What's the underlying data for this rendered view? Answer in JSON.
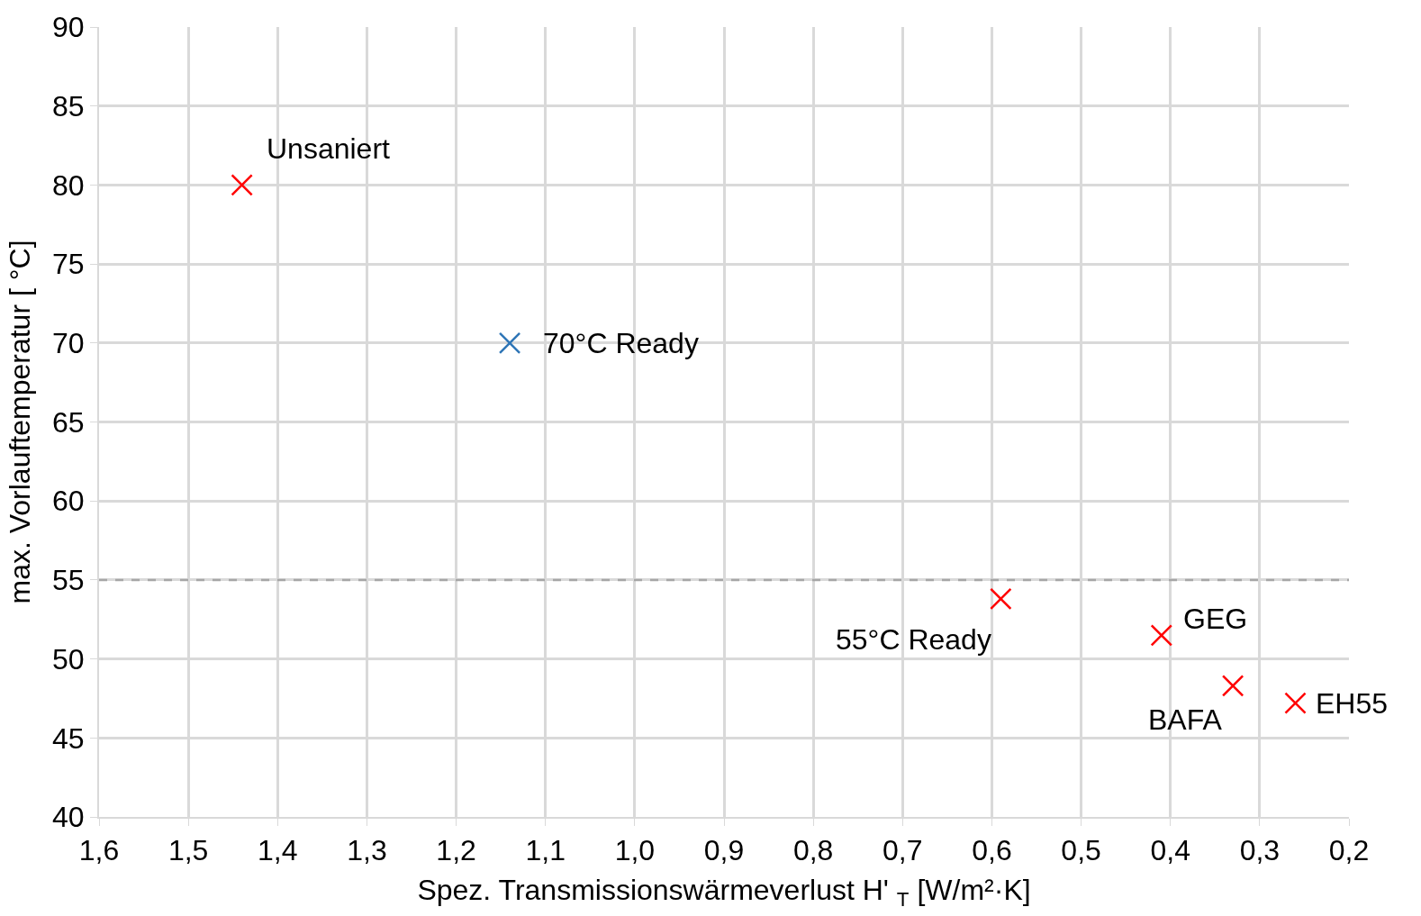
{
  "chart_data": {
    "type": "scatter",
    "xlabel": "Spez. Transmissionswärmeverlust H' $_{T}$ [W/m²·K]",
    "ylabel": "max. Vorlauftemperatur [ °C]",
    "series": [
      {
        "color": "#ff0000",
        "x": [
          1.44,
          0.59,
          0.41,
          0.33,
          0.26
        ],
        "values": [
          80,
          53.8,
          51.5,
          48.3,
          47.2
        ]
      },
      {
        "color": "#2e75b6",
        "x": [
          1.14
        ],
        "values": [
          70
        ]
      }
    ],
    "xlim": [
      1.6,
      0.2
    ],
    "xticks": [
      {
        "value": 1.6,
        "label": "1,6"
      },
      {
        "value": 1.5,
        "label": "1,5"
      },
      {
        "value": 1.4,
        "label": "1,4"
      },
      {
        "value": 1.3,
        "label": "1,3"
      },
      {
        "value": 1.2,
        "label": "1,2"
      },
      {
        "value": 1.1,
        "label": "1,1"
      },
      {
        "value": 1.0,
        "label": "1,0"
      },
      {
        "value": 0.9,
        "label": "0,9"
      },
      {
        "value": 0.8,
        "label": "0,8"
      },
      {
        "value": 0.7,
        "label": "0,7"
      },
      {
        "value": 0.6,
        "label": "0,6"
      },
      {
        "value": 0.5,
        "label": "0,5"
      },
      {
        "value": 0.4,
        "label": "0,4"
      },
      {
        "value": 0.3,
        "label": "0,3"
      },
      {
        "value": 0.2,
        "label": "0,2"
      }
    ],
    "ylim": [
      40,
      90
    ],
    "yticks": [
      40,
      45,
      50,
      55,
      60,
      65,
      70,
      75,
      80,
      85,
      90
    ],
    "annotations": [
      {
        "text": "Unsaniert",
        "x": 1.44,
        "y": 80
      },
      {
        "text": "70°C Ready",
        "x": 1.14,
        "y": 70
      },
      {
        "text": "55°C Ready",
        "x": 0.59,
        "y": 53.8
      },
      {
        "text": "GEG",
        "x": 0.41,
        "y": 51.5
      },
      {
        "text": "BAFA",
        "x": 0.33,
        "y": 48.3
      },
      {
        "text": "EH55",
        "x": 0.26,
        "y": 47.2
      }
    ],
    "ref_lines": [
      {
        "axis": "y",
        "value": 55,
        "color": "#a6a6a6",
        "line_style": "dashed"
      }
    ],
    "grid": true,
    "marker": "cross"
  }
}
